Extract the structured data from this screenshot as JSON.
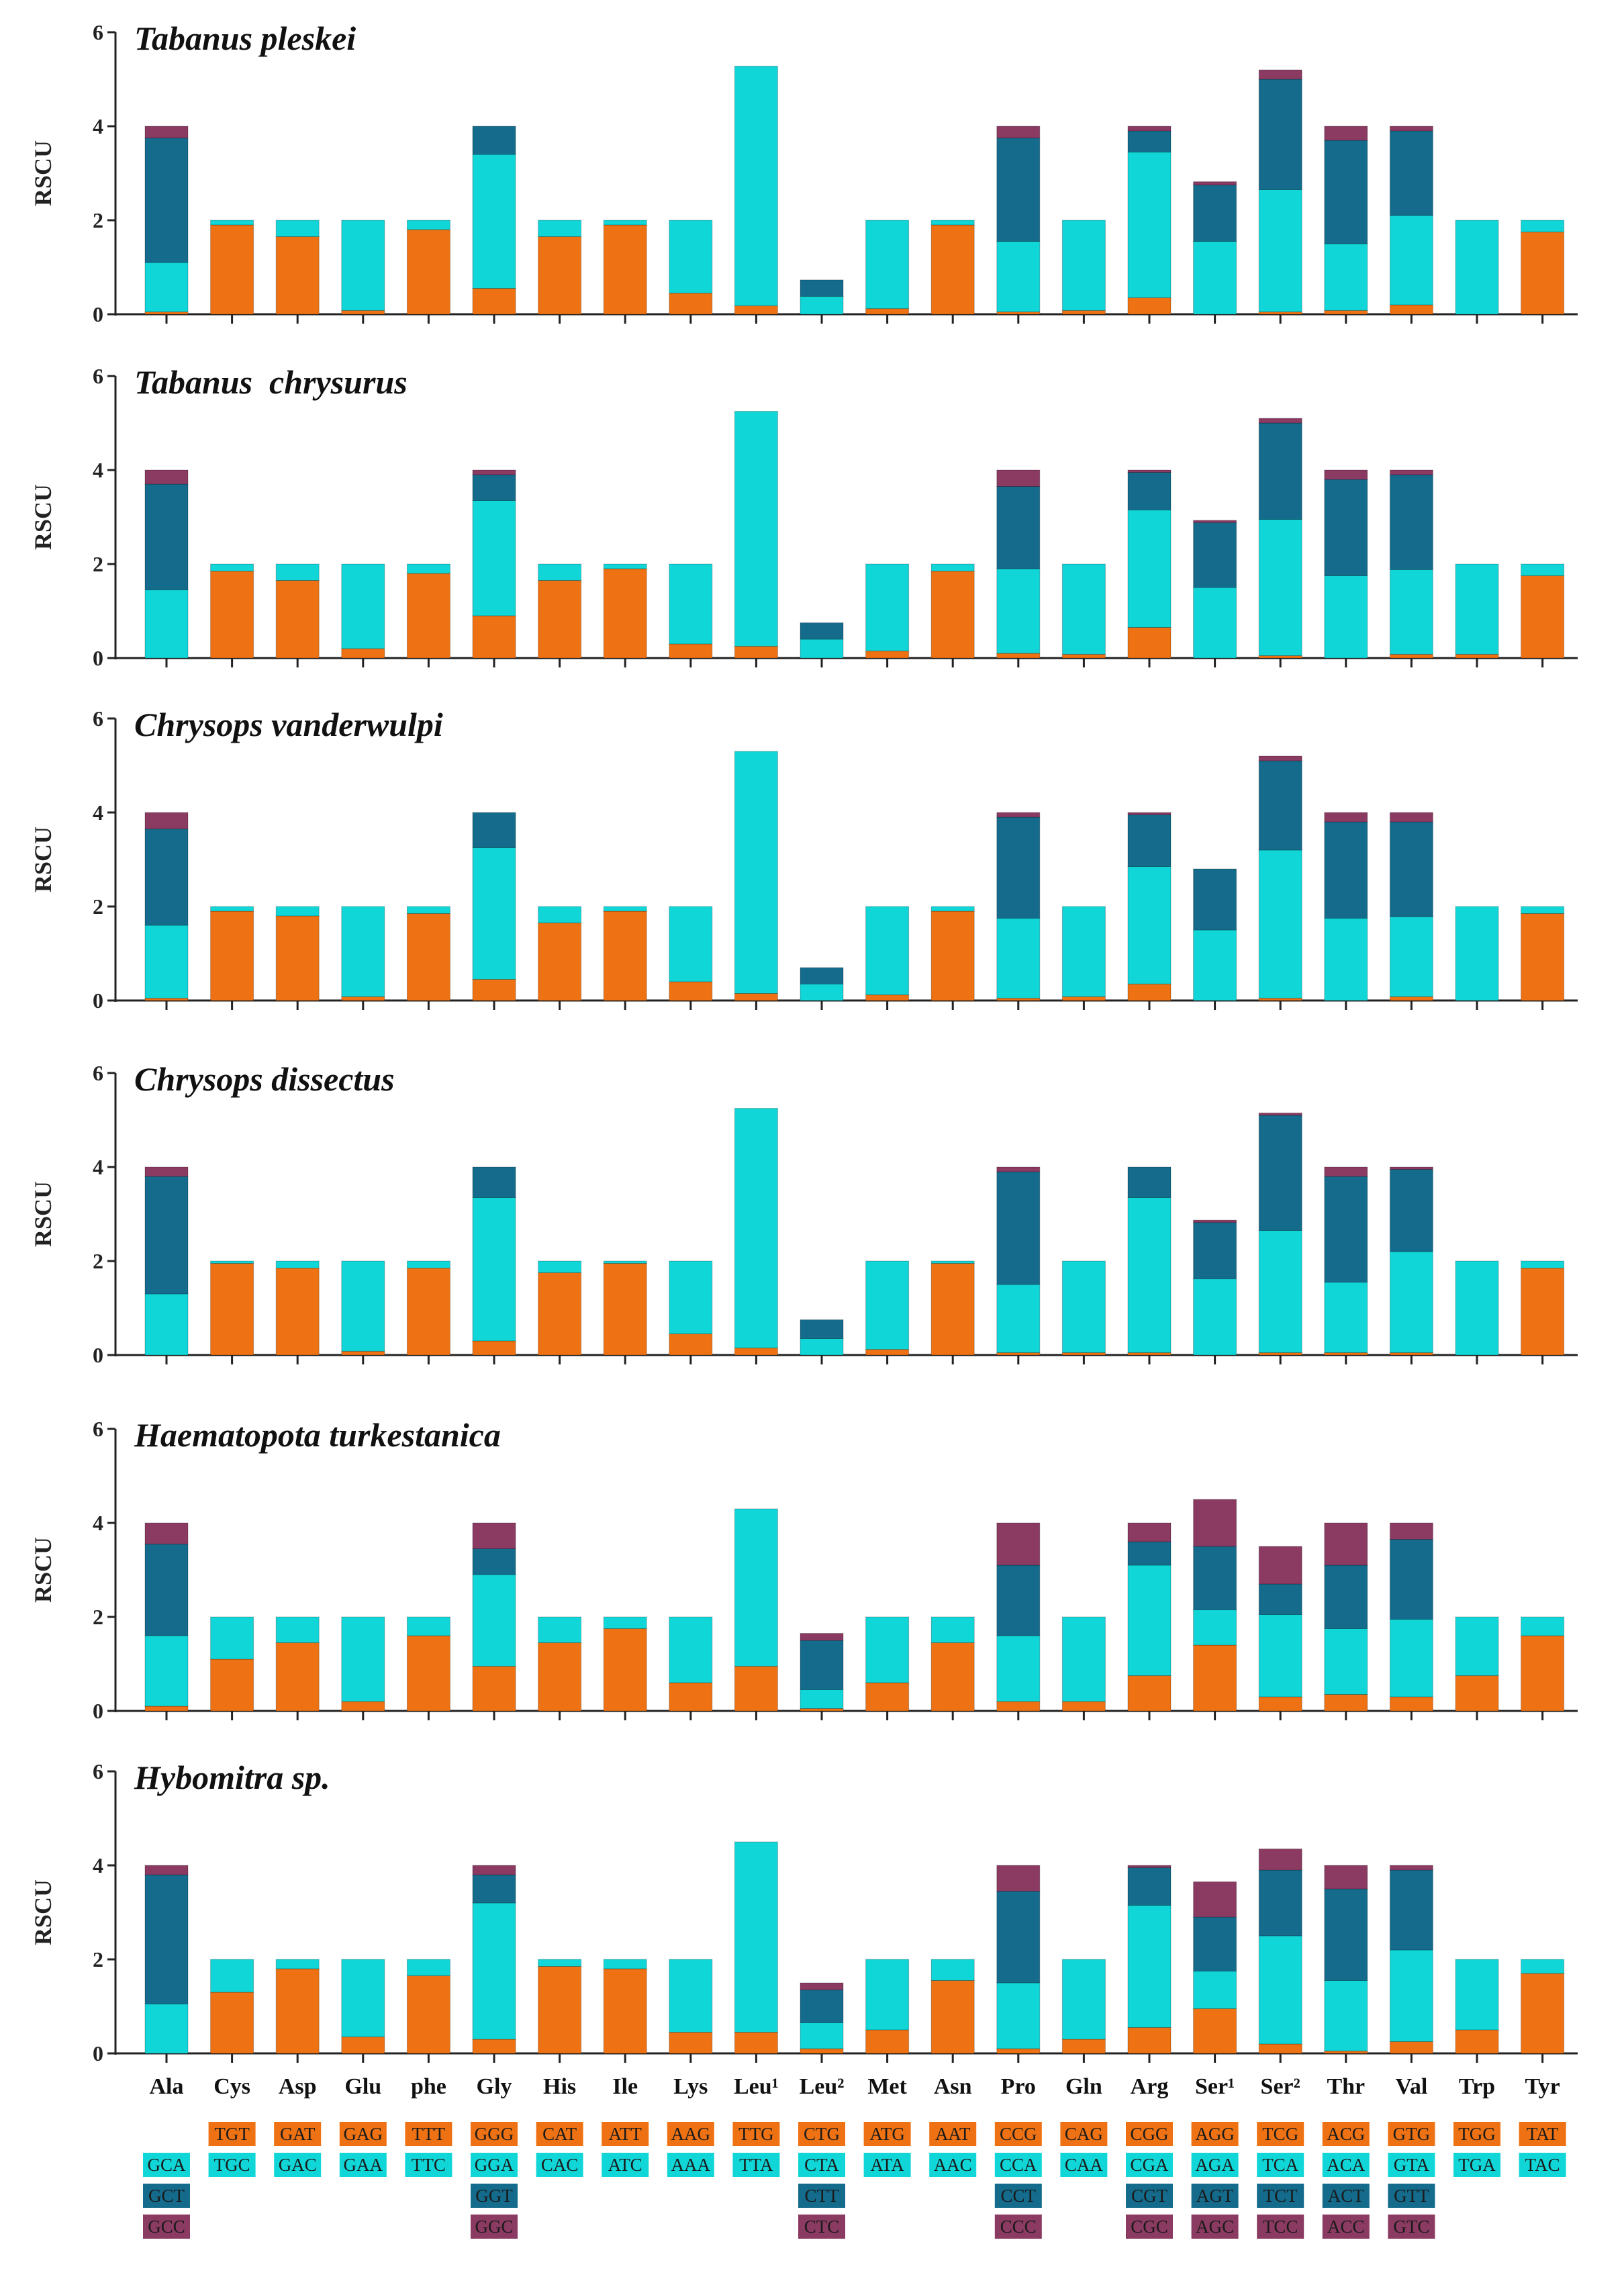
{
  "colors": {
    "orange": "#ee7213",
    "cyan": "#11d6d8",
    "teal": "#146b8c",
    "plum": "#8b3a62",
    "axis": "#222222",
    "codon_text": "#1a1a1a"
  },
  "chart_data": {
    "type": "bar",
    "stacked": true,
    "ylabel": "RSCU",
    "ylim": [
      0,
      6
    ],
    "yticks": [
      "0",
      "2",
      "4",
      "6"
    ],
    "categories": [
      "Ala",
      "Cys",
      "Asp",
      "Glu",
      "phe",
      "Gly",
      "His",
      "Ile",
      "Lys",
      "Leu¹",
      "Leu²",
      "Met",
      "Asn",
      "Pro",
      "Gln",
      "Arg",
      "Ser¹",
      "Ser²",
      "Thr",
      "Val",
      "Trp",
      "Tyr"
    ],
    "codons": [
      [
        "",
        "GCA",
        "GCT",
        "GCC"
      ],
      [
        "TGT",
        "TGC",
        "",
        ""
      ],
      [
        "GAT",
        "GAC",
        "",
        ""
      ],
      [
        "GAG",
        "GAA",
        "",
        ""
      ],
      [
        "TTT",
        "TTC",
        "",
        ""
      ],
      [
        "GGG",
        "GGA",
        "GGT",
        "GGC"
      ],
      [
        "CAT",
        "CAC",
        "",
        ""
      ],
      [
        "ATT",
        "ATC",
        "",
        ""
      ],
      [
        "AAG",
        "AAA",
        "",
        ""
      ],
      [
        "TTG",
        "TTA",
        "",
        ""
      ],
      [
        "CTG",
        "CTA",
        "CTT",
        "CTC"
      ],
      [
        "ATG",
        "ATA",
        "",
        ""
      ],
      [
        "AAT",
        "AAC",
        "",
        ""
      ],
      [
        "CCG",
        "CCA",
        "CCT",
        "CCC"
      ],
      [
        "CAG",
        "CAA",
        "",
        ""
      ],
      [
        "CGG",
        "CGA",
        "CGT",
        "CGC"
      ],
      [
        "AGG",
        "AGA",
        "AGT",
        "AGC"
      ],
      [
        "TCG",
        "TCA",
        "TCT",
        "TCC"
      ],
      [
        "ACG",
        "ACA",
        "ACT",
        "ACC"
      ],
      [
        "GTG",
        "GTA",
        "GTT",
        "GTC"
      ],
      [
        "TGG",
        "TGA",
        "",
        ""
      ],
      [
        "TAT",
        "TAC",
        "",
        ""
      ]
    ],
    "panels": [
      {
        "title": "Tabanus pleskei",
        "stacks": [
          [
            0.05,
            1.05,
            2.65,
            0.25
          ],
          [
            1.9,
            0.1
          ],
          [
            1.65,
            0.35
          ],
          [
            0.08,
            1.92
          ],
          [
            1.8,
            0.2
          ],
          [
            0.55,
            2.85,
            0.6,
            0
          ],
          [
            1.65,
            0.35
          ],
          [
            1.9,
            0.1
          ],
          [
            0.45,
            1.55
          ],
          [
            0.18,
            5.1
          ],
          [
            0,
            0.38,
            0.35,
            0
          ],
          [
            0.12,
            1.88
          ],
          [
            1.9,
            0.1
          ],
          [
            0.05,
            1.5,
            2.2,
            0.25
          ],
          [
            0.08,
            1.92
          ],
          [
            0.35,
            3.1,
            0.45,
            0.1
          ],
          [
            0,
            1.55,
            1.2,
            0.07
          ],
          [
            0.05,
            2.6,
            2.35,
            0.2
          ],
          [
            0.08,
            1.42,
            2.2,
            0.3
          ],
          [
            0.2,
            1.9,
            1.8,
            0.1
          ],
          [
            0,
            2
          ],
          [
            1.75,
            0.25
          ]
        ]
      },
      {
        "title": "Tabanus  chrysurus",
        "stacks": [
          [
            0,
            1.45,
            2.25,
            0.3
          ],
          [
            1.85,
            0.15
          ],
          [
            1.65,
            0.35
          ],
          [
            0.2,
            1.8
          ],
          [
            1.8,
            0.2
          ],
          [
            0.9,
            2.45,
            0.55,
            0.1
          ],
          [
            1.65,
            0.35
          ],
          [
            1.9,
            0.1
          ],
          [
            0.3,
            1.7
          ],
          [
            0.25,
            5
          ],
          [
            0,
            0.4,
            0.35,
            0
          ],
          [
            0.15,
            1.85
          ],
          [
            1.85,
            0.15
          ],
          [
            0.1,
            1.8,
            1.75,
            0.35
          ],
          [
            0.08,
            1.92
          ],
          [
            0.65,
            2.5,
            0.8,
            0.05
          ],
          [
            0,
            1.5,
            1.38,
            0.05
          ],
          [
            0.05,
            2.9,
            2.05,
            0.1
          ],
          [
            0,
            1.75,
            2.05,
            0.2
          ],
          [
            0.08,
            1.8,
            2.02,
            0.1
          ],
          [
            0.08,
            1.92
          ],
          [
            1.75,
            0.25
          ]
        ]
      },
      {
        "title": "Chrysops vanderwulpi",
        "stacks": [
          [
            0.05,
            1.55,
            2.05,
            0.35
          ],
          [
            1.9,
            0.1
          ],
          [
            1.8,
            0.2
          ],
          [
            0.08,
            1.92
          ],
          [
            1.85,
            0.15
          ],
          [
            0.45,
            2.8,
            0.75,
            0
          ],
          [
            1.65,
            0.35
          ],
          [
            1.9,
            0.1
          ],
          [
            0.4,
            1.6
          ],
          [
            0.15,
            5.15
          ],
          [
            0,
            0.35,
            0.35,
            0
          ],
          [
            0.12,
            1.88
          ],
          [
            1.9,
            0.1
          ],
          [
            0.05,
            1.7,
            2.15,
            0.1
          ],
          [
            0.08,
            1.92
          ],
          [
            0.35,
            2.5,
            1.1,
            0.05
          ],
          [
            0,
            1.5,
            1.3,
            0
          ],
          [
            0.05,
            3.15,
            1.9,
            0.1
          ],
          [
            0,
            1.75,
            2.05,
            0.2
          ],
          [
            0.08,
            1.7,
            2.02,
            0.2
          ],
          [
            0,
            2
          ],
          [
            1.85,
            0.15
          ]
        ]
      },
      {
        "title": "Chrysops dissectus",
        "stacks": [
          [
            0,
            1.3,
            2.5,
            0.2
          ],
          [
            1.95,
            0.05
          ],
          [
            1.85,
            0.15
          ],
          [
            0.08,
            1.92
          ],
          [
            1.85,
            0.15
          ],
          [
            0.3,
            3.05,
            0.65,
            0
          ],
          [
            1.75,
            0.25
          ],
          [
            1.95,
            0.05
          ],
          [
            0.45,
            1.55
          ],
          [
            0.15,
            5.1
          ],
          [
            0,
            0.35,
            0.4,
            0
          ],
          [
            0.12,
            1.88
          ],
          [
            1.95,
            0.05
          ],
          [
            0.05,
            1.45,
            2.4,
            0.1
          ],
          [
            0.05,
            1.95
          ],
          [
            0.05,
            3.3,
            0.65,
            0
          ],
          [
            0,
            1.62,
            1.2,
            0.05
          ],
          [
            0.05,
            2.6,
            2.45,
            0.05
          ],
          [
            0.05,
            1.5,
            2.25,
            0.2
          ],
          [
            0.05,
            2.15,
            1.75,
            0.05
          ],
          [
            0,
            2
          ],
          [
            1.85,
            0.15
          ]
        ]
      },
      {
        "title": "Haematopota turkestanica",
        "stacks": [
          [
            0.1,
            1.5,
            1.95,
            0.45
          ],
          [
            1.1,
            0.9
          ],
          [
            1.45,
            0.55
          ],
          [
            0.2,
            1.8
          ],
          [
            1.6,
            0.4
          ],
          [
            0.95,
            1.95,
            0.55,
            0.55
          ],
          [
            1.45,
            0.55
          ],
          [
            1.75,
            0.25
          ],
          [
            0.6,
            1.4
          ],
          [
            0.95,
            3.35
          ],
          [
            0.05,
            0.4,
            1.05,
            0.15
          ],
          [
            0.6,
            1.4
          ],
          [
            1.45,
            0.55
          ],
          [
            0.2,
            1.4,
            1.5,
            0.9
          ],
          [
            0.2,
            1.8
          ],
          [
            0.75,
            2.35,
            0.5,
            0.4
          ],
          [
            1.4,
            0.75,
            1.35,
            1
          ],
          [
            0.3,
            1.75,
            0.65,
            0.8
          ],
          [
            0.35,
            1.4,
            1.35,
            0.9
          ],
          [
            0.3,
            1.65,
            1.7,
            0.35
          ],
          [
            0.75,
            1.25
          ],
          [
            1.6,
            0.4
          ]
        ]
      },
      {
        "title": "Hybomitra sp.",
        "stacks": [
          [
            0,
            1.05,
            2.75,
            0.2
          ],
          [
            1.3,
            0.7
          ],
          [
            1.8,
            0.2
          ],
          [
            0.35,
            1.65
          ],
          [
            1.65,
            0.35
          ],
          [
            0.3,
            2.9,
            0.6,
            0.2
          ],
          [
            1.85,
            0.15
          ],
          [
            1.8,
            0.2
          ],
          [
            0.45,
            1.55
          ],
          [
            0.45,
            4.05
          ],
          [
            0.1,
            0.55,
            0.7,
            0.15
          ],
          [
            0.5,
            1.5
          ],
          [
            1.55,
            0.45
          ],
          [
            0.1,
            1.4,
            1.95,
            0.55
          ],
          [
            0.3,
            1.7
          ],
          [
            0.55,
            2.6,
            0.8,
            0.05
          ],
          [
            0.95,
            0.8,
            1.15,
            0.75
          ],
          [
            0.2,
            2.3,
            1.4,
            0.45
          ],
          [
            0.05,
            1.5,
            1.95,
            0.5
          ],
          [
            0.25,
            1.95,
            1.7,
            0.1
          ],
          [
            0.5,
            1.5
          ],
          [
            1.7,
            0.3
          ]
        ]
      }
    ]
  }
}
